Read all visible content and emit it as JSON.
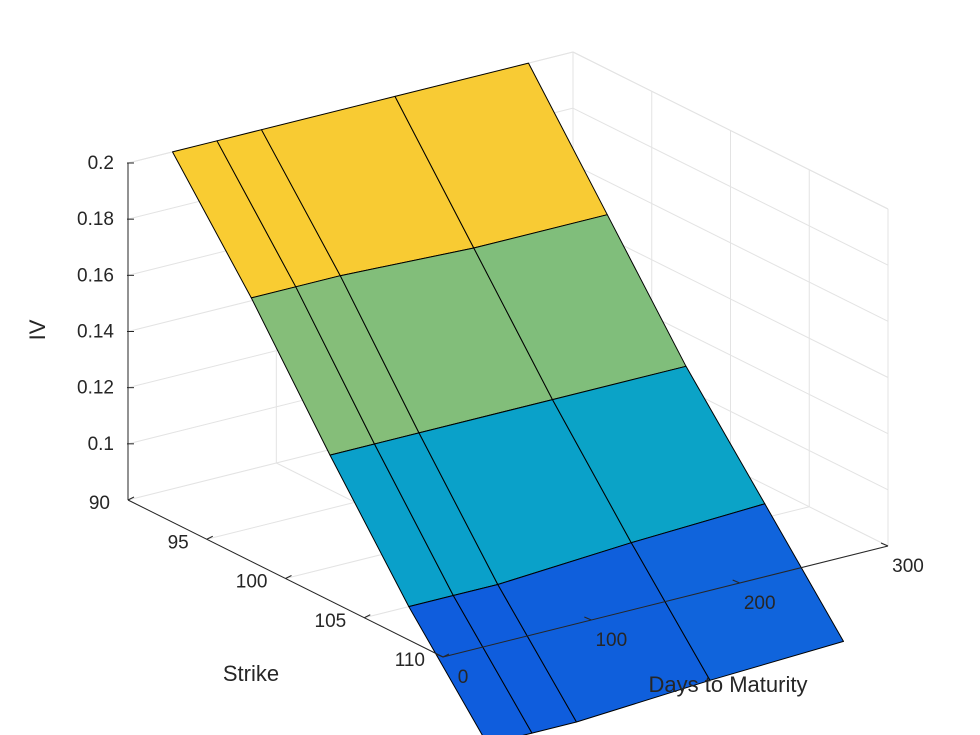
{
  "chart_data": {
    "type": "surface",
    "title": "",
    "xlabel": "Days to Maturity",
    "ylabel": "Strike",
    "zlabel": "IV",
    "days": [
      30,
      60,
      90,
      180,
      270
    ],
    "strikes": [
      90,
      95,
      100,
      105,
      110
    ],
    "iv": [
      [
        0.2,
        0.2,
        0.2,
        0.2,
        0.2
      ],
      [
        0.162,
        0.162,
        0.162,
        0.16,
        0.16
      ],
      [
        0.12,
        0.12,
        0.12,
        0.12,
        0.12
      ],
      [
        0.08,
        0.08,
        0.08,
        0.083,
        0.085
      ],
      [
        0.045,
        0.045,
        0.045,
        0.048,
        0.05
      ]
    ],
    "xticks": [
      "0",
      "100",
      "200",
      "300"
    ],
    "yticks": [
      "90",
      "95",
      "100",
      "105",
      "110"
    ],
    "zticks": [
      "0.1",
      "0.12",
      "0.14",
      "0.16",
      "0.18",
      "0.2"
    ],
    "xlim": [
      0,
      300
    ],
    "ylim": [
      90,
      110
    ],
    "zlim": [
      0.08,
      0.2
    ],
    "colormap": "parula",
    "grid": true
  }
}
